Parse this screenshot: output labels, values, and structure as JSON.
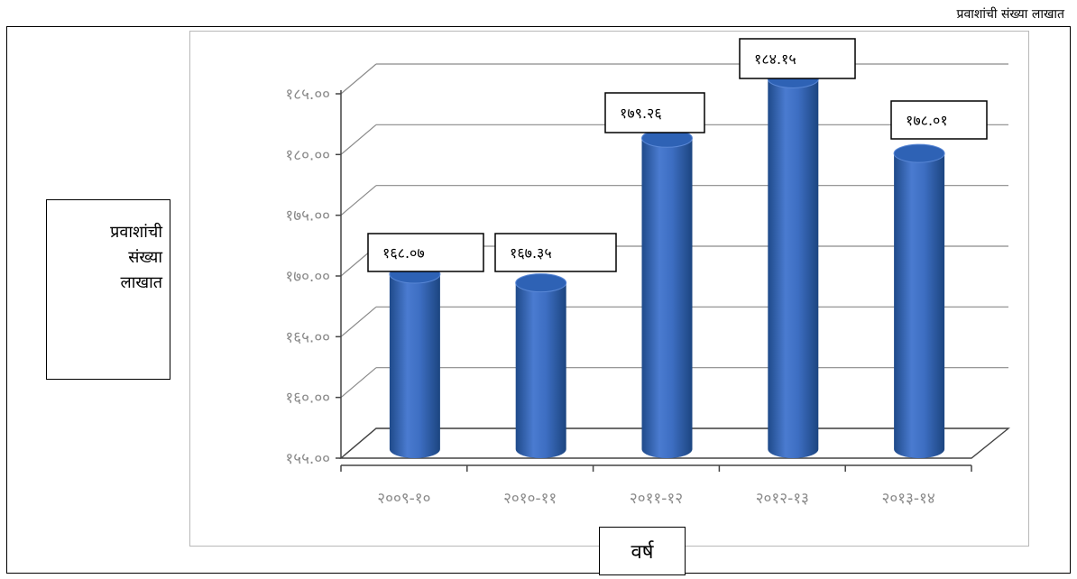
{
  "header": {
    "caption": "प्रवाशांची संख्या लाखात"
  },
  "chart_data": {
    "type": "bar",
    "categories": [
      "२००९-१०",
      "२०१०-११",
      "२०११-१२",
      "२०१२-१३",
      "२०१३-१४"
    ],
    "values": [
      168.07,
      167.35,
      179.26,
      184.15,
      178.01
    ],
    "data_labels": [
      "१६८.०७",
      "१६७.३५",
      "१७९.२६",
      "१८४.१५",
      "१७८.०१"
    ],
    "yticks": [
      155,
      160,
      165,
      170,
      175,
      180,
      185
    ],
    "ytick_labels": [
      "१५५.००",
      "१६०.००",
      "१६५.००",
      "१७०.००",
      "१७५.००",
      "१८०.००",
      "१८५.००"
    ],
    "ylim": [
      155,
      185
    ],
    "xlabel": "वर्ष",
    "ylabel": "प्रवाशांची\nसंख्या\nलाखात",
    "grid": true,
    "style": "3d-cylinder",
    "colors": {
      "bar": "#4473c5",
      "bar_dark": "#1f4a8a",
      "bar_top": "#2e62b5",
      "grid": "#8a8a8a"
    }
  }
}
